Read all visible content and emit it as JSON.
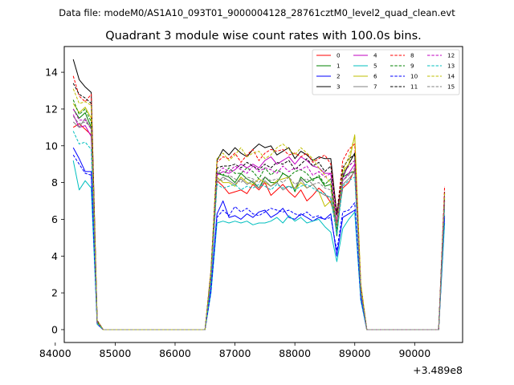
{
  "suptitle": "Data file: modeM0/AS1A10_093T01_9000004128_28761cztM0_level2_quad_clean.evt",
  "chart_data": {
    "type": "line",
    "title": "Quadrant 3 module wise count rates with 100.0s bins.",
    "xlabel": "",
    "ylabel": "",
    "x_offset_label": "+3.489e8",
    "xlim": [
      84150,
      90800
    ],
    "ylim": [
      -0.7,
      15.4
    ],
    "xticks": [
      84000,
      85000,
      86000,
      87000,
      88000,
      89000,
      90000
    ],
    "yticks": [
      0,
      2,
      4,
      6,
      8,
      10,
      12,
      14
    ],
    "grid": false,
    "legend_position": "top-right",
    "legend_columns": 4,
    "x": [
      84300,
      84400,
      84500,
      84600,
      84700,
      84800,
      86500,
      86600,
      86700,
      86800,
      86900,
      87000,
      87100,
      87200,
      87300,
      87400,
      87500,
      87600,
      87700,
      87800,
      87900,
      88000,
      88100,
      88200,
      88300,
      88400,
      88500,
      88600,
      88700,
      88800,
      88900,
      89000,
      89100,
      89200,
      90400,
      90500
    ],
    "series": [
      {
        "name": "0",
        "color": "#ff0000",
        "dash": "solid",
        "values": [
          11.0,
          11.2,
          10.9,
          10.6,
          0.3,
          0.0,
          0.0,
          2.8,
          8.1,
          7.8,
          7.4,
          7.5,
          7.6,
          7.4,
          7.9,
          7.6,
          8.0,
          7.3,
          7.6,
          7.9,
          7.5,
          7.2,
          7.6,
          7.0,
          7.3,
          7.7,
          7.4,
          6.9,
          5.8,
          7.7,
          8.0,
          8.7,
          2.0,
          0.0,
          0.0,
          7.0
        ]
      },
      {
        "name": "1",
        "color": "#008000",
        "dash": "solid",
        "values": [
          12.0,
          11.5,
          11.8,
          11.0,
          0.4,
          0.0,
          0.0,
          3.0,
          8.5,
          8.4,
          8.3,
          8.0,
          8.5,
          8.2,
          8.0,
          7.7,
          8.3,
          8.0,
          8.0,
          8.5,
          8.3,
          7.5,
          8.3,
          8.0,
          8.2,
          8.3,
          7.8,
          7.9,
          5.1,
          8.3,
          8.5,
          8.6,
          2.2,
          0.0,
          0.0,
          7.1
        ]
      },
      {
        "name": "2",
        "color": "#0000ff",
        "dash": "solid",
        "values": [
          9.9,
          9.3,
          8.6,
          8.6,
          0.3,
          0.0,
          0.0,
          2.2,
          6.3,
          7.0,
          6.1,
          6.2,
          6.0,
          6.3,
          6.1,
          6.4,
          6.5,
          6.1,
          6.3,
          6.6,
          6.1,
          6.0,
          6.3,
          6.1,
          5.9,
          6.1,
          6.0,
          6.3,
          4.0,
          6.1,
          6.3,
          6.5,
          1.7,
          0.0,
          0.0,
          6.1
        ]
      },
      {
        "name": "3",
        "color": "#000000",
        "dash": "solid",
        "values": [
          14.7,
          13.6,
          13.2,
          12.9,
          0.5,
          0.0,
          0.0,
          3.2,
          9.2,
          9.8,
          9.5,
          9.9,
          9.6,
          9.4,
          9.8,
          10.1,
          9.9,
          10.0,
          9.5,
          9.7,
          9.9,
          9.3,
          9.7,
          9.5,
          9.2,
          9.4,
          9.3,
          9.3,
          6.3,
          8.3,
          9.0,
          9.6,
          2.4,
          0.0,
          0.0,
          7.5
        ]
      },
      {
        "name": "4",
        "color": "#c000c0",
        "dash": "solid",
        "values": [
          11.7,
          11.0,
          11.1,
          10.5,
          0.4,
          0.0,
          0.0,
          2.9,
          8.4,
          8.6,
          8.5,
          8.7,
          9.0,
          8.8,
          9.0,
          8.8,
          9.2,
          9.4,
          9.0,
          9.2,
          9.4,
          9.0,
          9.4,
          9.2,
          8.9,
          8.8,
          8.5,
          8.5,
          5.5,
          8.1,
          8.5,
          9.0,
          2.2,
          0.0,
          0.0,
          7.0
        ]
      },
      {
        "name": "5",
        "color": "#00bfbf",
        "dash": "solid",
        "values": [
          9.2,
          7.6,
          8.1,
          7.7,
          0.3,
          0.0,
          0.0,
          2.0,
          5.8,
          5.9,
          5.8,
          5.9,
          5.8,
          5.9,
          5.7,
          5.8,
          5.8,
          5.9,
          6.1,
          5.8,
          6.2,
          5.9,
          6.1,
          5.8,
          5.9,
          6.0,
          5.6,
          5.3,
          3.7,
          5.5,
          6.0,
          6.4,
          1.6,
          0.0,
          0.0,
          5.8
        ]
      },
      {
        "name": "6",
        "color": "#bfbf00",
        "dash": "solid",
        "values": [
          12.3,
          11.8,
          12.1,
          11.5,
          0.4,
          0.0,
          0.0,
          3.0,
          8.3,
          8.0,
          8.0,
          7.8,
          8.3,
          8.0,
          7.9,
          8.2,
          8.0,
          7.8,
          8.1,
          8.2,
          8.3,
          7.6,
          8.0,
          7.7,
          7.9,
          7.5,
          6.7,
          7.0,
          5.5,
          8.6,
          9.0,
          10.6,
          2.5,
          0.0,
          0.0,
          6.9
        ]
      },
      {
        "name": "7",
        "color": "#808080",
        "dash": "solid",
        "values": [
          11.3,
          11.0,
          11.5,
          10.9,
          0.4,
          0.0,
          0.0,
          2.7,
          8.0,
          8.3,
          8.1,
          7.9,
          8.2,
          7.9,
          8.1,
          7.7,
          8.1,
          7.8,
          8.0,
          7.6,
          7.8,
          7.7,
          8.2,
          7.7,
          7.9,
          7.5,
          7.3,
          7.2,
          5.4,
          7.9,
          8.2,
          8.6,
          2.1,
          0.0,
          0.0,
          6.8
        ]
      },
      {
        "name": "8",
        "color": "#ff0000",
        "dash": "dashed",
        "values": [
          13.8,
          12.7,
          12.4,
          12.8,
          0.5,
          0.0,
          0.0,
          3.2,
          9.1,
          9.4,
          9.3,
          9.6,
          9.1,
          9.5,
          9.8,
          9.2,
          9.6,
          9.8,
          9.7,
          9.8,
          9.5,
          9.6,
          9.4,
          9.6,
          9.1,
          9.3,
          9.5,
          9.0,
          6.3,
          9.2,
          9.8,
          10.1,
          2.4,
          0.0,
          0.0,
          7.8
        ]
      },
      {
        "name": "9",
        "color": "#008000",
        "dash": "dashed",
        "values": [
          12.5,
          11.7,
          12.0,
          11.3,
          0.4,
          0.0,
          0.0,
          3.0,
          8.6,
          8.4,
          8.8,
          8.5,
          8.5,
          8.8,
          8.6,
          8.2,
          8.8,
          8.4,
          8.7,
          8.5,
          8.3,
          8.6,
          8.7,
          8.5,
          8.1,
          8.4,
          7.9,
          8.2,
          5.5,
          8.5,
          8.9,
          9.2,
          2.3,
          0.0,
          0.0,
          7.2
        ]
      },
      {
        "name": "10",
        "color": "#0000ff",
        "dash": "dashed",
        "values": [
          9.5,
          9.0,
          8.5,
          8.4,
          0.3,
          0.0,
          0.0,
          2.1,
          6.1,
          6.5,
          6.2,
          6.7,
          6.4,
          6.6,
          6.3,
          6.2,
          6.4,
          6.6,
          6.5,
          6.4,
          6.5,
          6.3,
          6.2,
          6.4,
          6.1,
          6.2,
          6.0,
          6.1,
          4.3,
          6.4,
          6.5,
          6.9,
          1.7,
          0.0,
          0.0,
          6.2
        ]
      },
      {
        "name": "11",
        "color": "#000000",
        "dash": "dashed",
        "values": [
          13.4,
          12.8,
          12.6,
          12.3,
          0.5,
          0.0,
          0.0,
          3.1,
          8.8,
          8.9,
          8.9,
          9.0,
          8.8,
          9.1,
          8.9,
          8.7,
          9.0,
          8.8,
          9.1,
          9.0,
          9.2,
          8.7,
          9.0,
          9.3,
          8.9,
          9.1,
          8.6,
          8.9,
          6.2,
          8.8,
          9.3,
          9.5,
          2.3,
          0.0,
          0.0,
          7.4
        ]
      },
      {
        "name": "12",
        "color": "#c000c0",
        "dash": "dashed",
        "values": [
          12.0,
          11.4,
          11.4,
          10.9,
          0.4,
          0.0,
          0.0,
          2.9,
          8.5,
          8.8,
          8.6,
          8.9,
          8.7,
          8.5,
          8.9,
          8.6,
          8.8,
          8.7,
          8.5,
          8.9,
          8.6,
          8.8,
          8.7,
          8.9,
          8.4,
          8.6,
          8.3,
          8.5,
          5.9,
          8.4,
          8.9,
          9.2,
          2.2,
          0.0,
          0.0,
          7.3
        ]
      },
      {
        "name": "13",
        "color": "#00bfbf",
        "dash": "dashed",
        "values": [
          10.8,
          10.1,
          10.2,
          9.8,
          0.3,
          0.0,
          0.0,
          2.6,
          7.9,
          7.7,
          7.8,
          7.9,
          7.6,
          7.8,
          7.7,
          7.9,
          7.8,
          7.6,
          7.9,
          7.7,
          7.8,
          7.6,
          7.8,
          7.9,
          7.7,
          7.5,
          7.4,
          7.1,
          5.2,
          7.8,
          8.1,
          8.3,
          2.0,
          0.0,
          0.0,
          6.6
        ]
      },
      {
        "name": "14",
        "color": "#bfbf00",
        "dash": "dashed",
        "values": [
          13.1,
          12.3,
          12.4,
          12.2,
          0.5,
          0.0,
          0.0,
          3.2,
          9.3,
          9.6,
          9.2,
          9.5,
          9.9,
          9.4,
          9.6,
          9.7,
          9.3,
          9.5,
          9.9,
          10.1,
          9.8,
          9.5,
          9.9,
          9.6,
          9.3,
          8.8,
          8.4,
          7.9,
          5.6,
          8.6,
          9.4,
          10.5,
          2.5,
          0.0,
          0.0,
          7.4
        ]
      },
      {
        "name": "15",
        "color": "#808080",
        "dash": "dashed",
        "values": [
          11.6,
          11.2,
          11.3,
          11.0,
          0.4,
          0.0,
          0.0,
          2.8,
          8.2,
          8.1,
          8.4,
          8.2,
          8.0,
          8.3,
          8.2,
          8.0,
          8.3,
          8.1,
          8.2,
          8.0,
          8.3,
          7.9,
          8.1,
          8.2,
          7.9,
          8.0,
          7.7,
          7.6,
          5.6,
          8.1,
          8.4,
          8.8,
          2.1,
          0.0,
          0.0,
          7.0
        ]
      }
    ]
  }
}
